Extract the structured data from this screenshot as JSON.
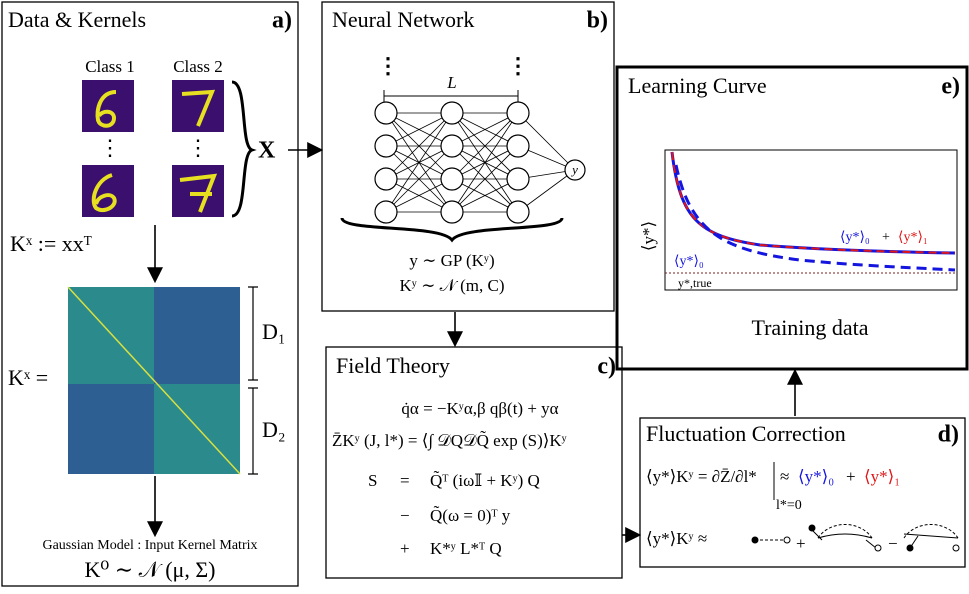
{
  "panels": {
    "a": {
      "title": "Data & Kernels",
      "label": "a)",
      "class1": "Class 1",
      "class2": "Class 2",
      "dots": "⋮",
      "x_label": "X",
      "kernel_def": "Kˣ := xxᵀ",
      "kernel_eq": "Kˣ =",
      "d1": "D₁",
      "d2": "D₂",
      "model_caption": "Gaussian Model : Input Kernel Matrix",
      "model_eq": "K⁰ ∼ 𝒩 (μ, Σ)"
    },
    "b": {
      "title": "Neural Network",
      "label": "b)",
      "depth": "L",
      "output": "y",
      "eq1": "y ∼ GP (Kʸ)",
      "eq2": "Kʸ ∼ 𝒩 (m, C)"
    },
    "c": {
      "title": "Field Theory",
      "label": "c)",
      "eq1": "q̇α = −Kʸα,β qβ(t) + yα",
      "eq2": "Z̄Kʸ (J, l*) = ⟨∫ 𝒟Q𝒟Q̃ exp (S)⟩Kʸ",
      "s_lhs": "S",
      "s_eq": "=",
      "s_rhs1": "Q̃ᵀ (iω𝕀 + Kʸ) Q",
      "s_op2": "−",
      "s_rhs2": "Q̃(ω = 0)ᵀ y",
      "s_op3": "+",
      "s_rhs3": "K*ʸ L*ᵀ Q"
    },
    "d": {
      "title": "Fluctuation Correction",
      "label": "d)",
      "eq1_lhs": "⟨y*⟩Kʸ = ∂Z̄/∂l*",
      "eq1_cond": "l*=0",
      "eq1_approx": "≈",
      "eq1_a": "⟨y*⟩₀",
      "eq1_plus": "+",
      "eq1_b": "⟨y*⟩₁",
      "eq2_lhs": "⟨y*⟩Kʸ ≈",
      "eq2_plus": "+",
      "eq2_minus": "−"
    },
    "e": {
      "title": "Learning Curve",
      "label": "e)",
      "y_label": "⟨y*⟩",
      "x_label": "Training data",
      "legend_a": "⟨y*⟩₀",
      "legend_plus": "+",
      "legend_b": "⟨y*⟩₁",
      "lower_label": "⟨y*⟩₀",
      "true_label": "y*,true"
    }
  }
}
